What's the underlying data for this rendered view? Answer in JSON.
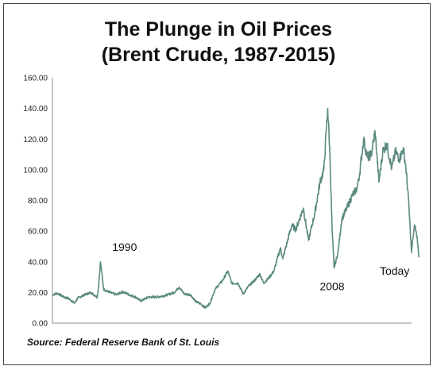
{
  "chart_data": {
    "type": "line",
    "title": "The Plunge in Oil Prices",
    "subtitle": "(Brent Crude, 1987-2015)",
    "source": "Source: Federal Reserve Bank of St. Louis",
    "xlabel": "",
    "ylabel": "",
    "xlim": [
      1987,
      2015.05
    ],
    "ylim": [
      0,
      160
    ],
    "yticks": [
      "0.00",
      "20.00",
      "40.00",
      "60.00",
      "80.00",
      "100.00",
      "120.00",
      "140.00",
      "160.00"
    ],
    "grid": false,
    "legend": "none",
    "line_color": "#5b8a80",
    "annotations": [
      {
        "text": "1990",
        "x": 1990.8,
        "y": 40
      },
      {
        "text": "2008",
        "x": 2008.5,
        "y": 33
      },
      {
        "text": "Today",
        "x": 2014.8,
        "y": 43
      }
    ],
    "series": [
      {
        "values": [
          [
            1987.0,
            18.5
          ],
          [
            1987.4,
            19.5
          ],
          [
            1987.9,
            17.0
          ],
          [
            1988.3,
            16.0
          ],
          [
            1988.7,
            13.0
          ],
          [
            1989.0,
            16.5
          ],
          [
            1989.5,
            18.5
          ],
          [
            1990.0,
            20.0
          ],
          [
            1990.5,
            17.0
          ],
          [
            1990.6,
            24.0
          ],
          [
            1990.75,
            40.0
          ],
          [
            1990.85,
            33.0
          ],
          [
            1991.0,
            22.0
          ],
          [
            1991.5,
            20.0
          ],
          [
            1992.0,
            18.5
          ],
          [
            1992.5,
            20.5
          ],
          [
            1993.0,
            18.5
          ],
          [
            1993.5,
            17.0
          ],
          [
            1993.9,
            14.5
          ],
          [
            1994.5,
            17.0
          ],
          [
            1995.0,
            17.0
          ],
          [
            1995.5,
            17.5
          ],
          [
            1996.0,
            18.5
          ],
          [
            1996.5,
            20.0
          ],
          [
            1996.9,
            23.5
          ],
          [
            1997.3,
            19.0
          ],
          [
            1997.8,
            18.5
          ],
          [
            1998.2,
            14.0
          ],
          [
            1998.6,
            12.5
          ],
          [
            1998.95,
            10.0
          ],
          [
            1999.3,
            13.0
          ],
          [
            1999.7,
            22.0
          ],
          [
            2000.0,
            25.0
          ],
          [
            2000.3,
            28.0
          ],
          [
            2000.7,
            34.0
          ],
          [
            2001.0,
            26.0
          ],
          [
            2001.5,
            26.0
          ],
          [
            2001.9,
            19.0
          ],
          [
            2002.3,
            24.0
          ],
          [
            2002.8,
            28.0
          ],
          [
            2003.2,
            32.0
          ],
          [
            2003.5,
            26.0
          ],
          [
            2003.9,
            29.5
          ],
          [
            2004.3,
            34.0
          ],
          [
            2004.8,
            49.0
          ],
          [
            2005.0,
            42.0
          ],
          [
            2005.4,
            55.0
          ],
          [
            2005.7,
            64.0
          ],
          [
            2006.0,
            61.0
          ],
          [
            2006.6,
            75.0
          ],
          [
            2007.0,
            54.0
          ],
          [
            2007.5,
            72.0
          ],
          [
            2007.9,
            92.0
          ],
          [
            2008.2,
            100.0
          ],
          [
            2008.5,
            140.0
          ],
          [
            2008.65,
            115.0
          ],
          [
            2008.85,
            60.0
          ],
          [
            2009.0,
            36.0
          ],
          [
            2009.3,
            46.0
          ],
          [
            2009.6,
            68.0
          ],
          [
            2010.0,
            75.0
          ],
          [
            2010.4,
            83.0
          ],
          [
            2010.8,
            88.0
          ],
          [
            2011.0,
            98.0
          ],
          [
            2011.3,
            120.0
          ],
          [
            2011.6,
            108.0
          ],
          [
            2011.9,
            110.0
          ],
          [
            2012.2,
            125.0
          ],
          [
            2012.5,
            92.0
          ],
          [
            2012.8,
            112.0
          ],
          [
            2013.1,
            117.0
          ],
          [
            2013.5,
            101.0
          ],
          [
            2013.8,
            112.0
          ],
          [
            2014.1,
            107.0
          ],
          [
            2014.4,
            114.0
          ],
          [
            2014.6,
            102.0
          ],
          [
            2014.8,
            82.0
          ],
          [
            2014.95,
            60.0
          ],
          [
            2015.05,
            46.0
          ],
          [
            2015.15,
            55.0
          ],
          [
            2015.3,
            64.0
          ],
          [
            2015.5,
            55.0
          ],
          [
            2015.62,
            43.0
          ]
        ]
      }
    ]
  }
}
